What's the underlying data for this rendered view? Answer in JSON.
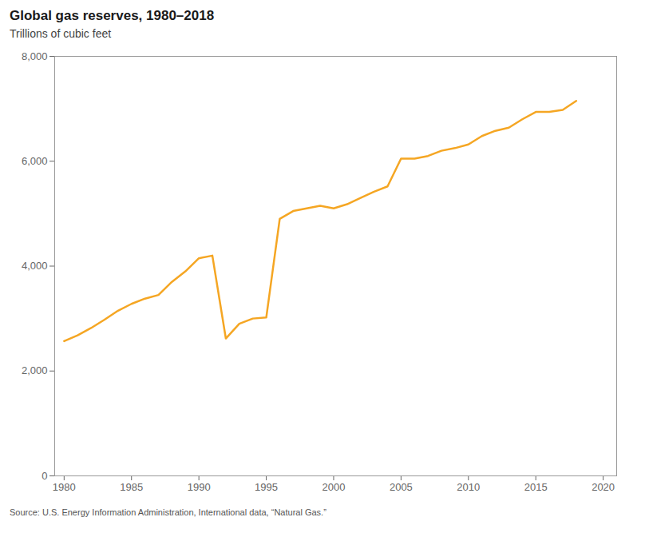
{
  "chart_data": {
    "type": "line",
    "title": "Global gas reserves, 1980–2018",
    "subtitle": "Trillions of cubic feet",
    "source": "Source: U.S. Energy Information Administration, International data, “Natural Gas.”",
    "x": [
      1980,
      1981,
      1982,
      1983,
      1984,
      1985,
      1986,
      1987,
      1988,
      1989,
      1990,
      1991,
      1992,
      1993,
      1994,
      1995,
      1996,
      1997,
      1998,
      1999,
      2000,
      2001,
      2002,
      2003,
      2004,
      2005,
      2006,
      2007,
      2008,
      2009,
      2010,
      2011,
      2012,
      2013,
      2014,
      2015,
      2016,
      2017,
      2018
    ],
    "values": [
      2570,
      2680,
      2820,
      2980,
      3150,
      3280,
      3380,
      3450,
      3700,
      3900,
      4150,
      4200,
      2620,
      2900,
      3000,
      3020,
      4900,
      5050,
      5100,
      5150,
      5100,
      5180,
      5300,
      5420,
      5520,
      6050,
      6050,
      6100,
      6200,
      6250,
      6320,
      6480,
      6580,
      6640,
      6800,
      6940,
      6940,
      6980,
      7150
    ],
    "color": "#F5A623",
    "xlim": [
      1979.3,
      2021.0
    ],
    "xticks": [
      1980,
      1985,
      1990,
      1995,
      2000,
      2005,
      2010,
      2015,
      2020
    ],
    "ylim": [
      0,
      8000
    ],
    "yticks": [
      0,
      {
        "value": 2000,
        "label": "2,000"
      },
      {
        "value": 4000,
        "label": "4,000"
      },
      {
        "value": 6000,
        "label": "6,000"
      },
      {
        "value": 8000,
        "label": "8,000"
      }
    ],
    "grid": false
  }
}
